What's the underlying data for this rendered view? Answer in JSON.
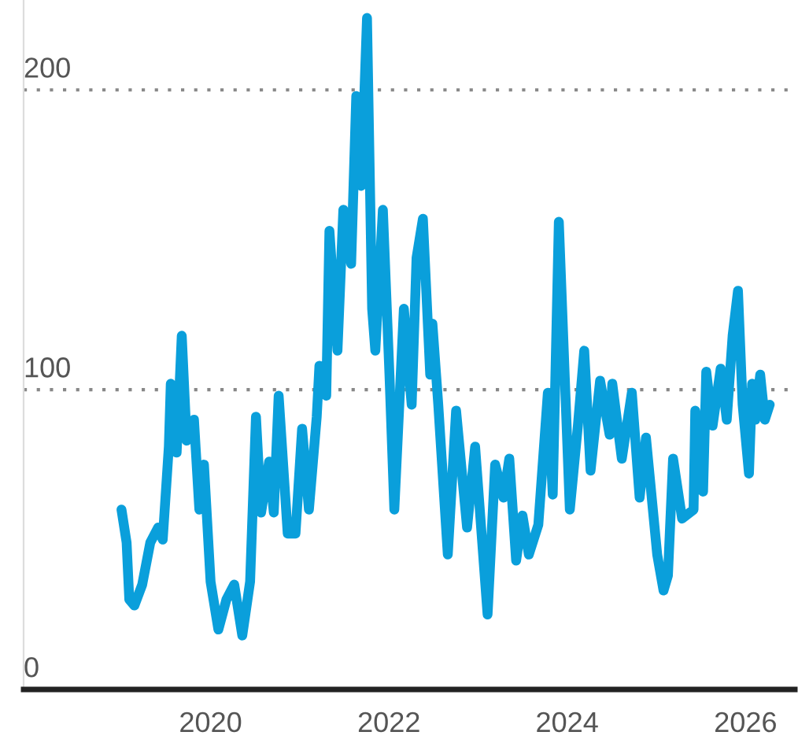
{
  "chart_data": {
    "type": "line",
    "x": [
      "2019-01-01",
      "2019-01-22",
      "2019-02-02",
      "2019-02-23",
      "2019-03-27",
      "2019-04-29",
      "2019-05-31",
      "2019-06-19",
      "2019-07-14",
      "2019-07-22",
      "2019-08-15",
      "2019-09-05",
      "2019-09-25",
      "2019-10-25",
      "2019-11-16",
      "2019-12-05",
      "2020-01-01",
      "2020-02-02",
      "2020-03-06",
      "2020-04-07",
      "2020-05-10",
      "2020-06-11",
      "2020-07-05",
      "2020-07-26",
      "2020-08-28",
      "2020-09-16",
      "2020-10-06",
      "2020-11-12",
      "2020-12-14",
      "2021-01-10",
      "2021-02-07",
      "2021-03-11",
      "2021-03-22",
      "2021-04-19",
      "2021-05-02",
      "2021-06-04",
      "2021-06-28",
      "2021-07-30",
      "2021-08-20",
      "2021-09-09",
      "2021-10-03",
      "2021-10-24",
      "2021-11-06",
      "2021-12-07",
      "2022-01-03",
      "2022-01-23",
      "2022-03-03",
      "2022-04-04",
      "2022-04-24",
      "2022-05-20",
      "2022-06-19",
      "2022-06-28",
      "2022-07-22",
      "2022-08-30",
      "2022-10-03",
      "2022-11-17",
      "2022-12-20",
      "2023-02-09",
      "2023-03-12",
      "2023-04-15",
      "2023-05-09",
      "2023-06-06",
      "2023-07-02",
      "2023-07-28",
      "2023-09-05",
      "2023-10-14",
      "2023-11-03",
      "2023-11-28",
      "2024-01-12",
      "2024-02-14",
      "2024-03-11",
      "2024-04-06",
      "2024-05-15",
      "2024-06-23",
      "2024-07-04",
      "2024-08-12",
      "2024-09-22",
      "2024-10-24",
      "2024-11-19",
      "2025-01-04",
      "2025-01-30",
      "2025-02-17",
      "2025-03-10",
      "2025-04-16",
      "2025-06-02",
      "2025-06-09",
      "2025-07-11",
      "2025-07-24",
      "2025-08-19",
      "2025-09-21",
      "2025-10-16",
      "2025-11-09",
      "2025-12-01",
      "2025-12-20",
      "2026-01-15",
      "2026-01-28",
      "2026-02-10",
      "2026-03-02",
      "2026-03-21",
      "2026-04-10"
    ],
    "series": [
      {
        "color": "#0a9fdb",
        "values": [
          60,
          49,
          30,
          28,
          35,
          49,
          54,
          50,
          81,
          102,
          79,
          118,
          83,
          90,
          60,
          75,
          36,
          20,
          30,
          35,
          18,
          36,
          91,
          59,
          76,
          59,
          98,
          52,
          52,
          87,
          60,
          91,
          108,
          98,
          153,
          113,
          160,
          142,
          198,
          168,
          224,
          127,
          113,
          160,
          105,
          60,
          127,
          95,
          144,
          157,
          105,
          122,
          95,
          45,
          93,
          54,
          81,
          25,
          75,
          64,
          77,
          43,
          58,
          45,
          55,
          99,
          65,
          156,
          60,
          88,
          113,
          73,
          103,
          85,
          102,
          77,
          99,
          64,
          84,
          45,
          33,
          38,
          77,
          57,
          60,
          93,
          66,
          106,
          88,
          107,
          90,
          118,
          133,
          95,
          72,
          102,
          90,
          105,
          90,
          95
        ]
      }
    ],
    "xlim": [
      "2017-11-26",
      "2026-07-22"
    ],
    "xticks": [
      {
        "value": "2020-01-01",
        "label": "2020"
      },
      {
        "value": "2022-01-01",
        "label": "2022"
      },
      {
        "value": "2024-01-01",
        "label": "2024"
      },
      {
        "value": "2026-01-01",
        "label": "2026"
      }
    ],
    "ylim": [
      0,
      230
    ],
    "yticks": [
      0,
      100,
      200
    ],
    "grid": "y",
    "marker": "none",
    "line_style": "solid"
  }
}
